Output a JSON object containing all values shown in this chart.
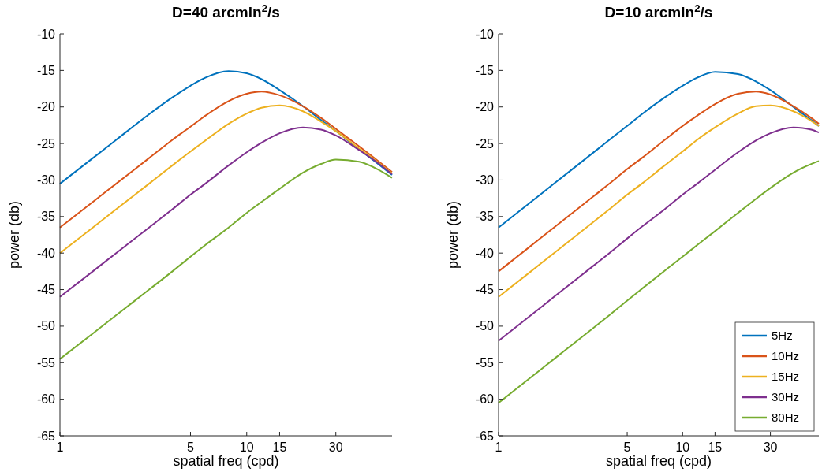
{
  "chart_data": [
    {
      "type": "line",
      "title": "D=40 arcmin$^{2}$/s",
      "xlabel": "spatial freq (cpd)",
      "ylabel": "power (db)",
      "log": "x",
      "x": [
        1,
        1.5,
        2,
        3,
        4,
        5,
        6,
        8,
        10,
        12,
        15,
        20,
        25,
        30,
        40,
        50,
        60
      ],
      "xlim": [
        1,
        60
      ],
      "xticks": [
        1,
        5,
        10,
        15,
        30
      ],
      "ylim": [
        -65,
        -10
      ],
      "yticks": [
        -65,
        -60,
        -55,
        -50,
        -45,
        -40,
        -35,
        -30,
        -25,
        -20,
        -15,
        -10
      ],
      "grid": false,
      "legend": false,
      "series": [
        {
          "color": "#0072bd",
          "values": [
            -30.5,
            -27.0,
            -24.5,
            -21.0,
            -18.7,
            -17.1,
            -16.0,
            -15.1,
            -15.4,
            -16.2,
            -17.7,
            -19.9,
            -21.8,
            -23.3,
            -25.8,
            -27.7,
            -29.3
          ]
        },
        {
          "color": "#d95319",
          "values": [
            -36.5,
            -33.0,
            -30.5,
            -27.0,
            -24.5,
            -22.7,
            -21.2,
            -19.2,
            -18.2,
            -17.9,
            -18.4,
            -19.9,
            -21.5,
            -23.0,
            -25.4,
            -27.3,
            -28.9
          ]
        },
        {
          "color": "#edb120",
          "values": [
            -40.0,
            -36.5,
            -34.0,
            -30.5,
            -28.0,
            -26.1,
            -24.6,
            -22.3,
            -20.9,
            -20.1,
            -19.8,
            -20.6,
            -22.0,
            -23.3,
            -25.7,
            -27.5,
            -29.1
          ]
        },
        {
          "color": "#7e2f8e",
          "values": [
            -46.0,
            -42.5,
            -40.0,
            -36.5,
            -34.0,
            -32.0,
            -30.5,
            -28.0,
            -26.2,
            -24.9,
            -23.6,
            -22.8,
            -23.1,
            -23.9,
            -25.9,
            -27.6,
            -29.2
          ]
        },
        {
          "color": "#77ac30",
          "values": [
            -54.5,
            -51.0,
            -48.5,
            -45.0,
            -42.5,
            -40.5,
            -38.9,
            -36.5,
            -34.5,
            -33.0,
            -31.2,
            -29.0,
            -27.8,
            -27.2,
            -27.5,
            -28.5,
            -29.7
          ]
        }
      ]
    },
    {
      "type": "line",
      "title": "D=10 arcmin$^{2}$/s",
      "xlabel": "spatial freq (cpd)",
      "ylabel": "power (db)",
      "log": "x",
      "x": [
        1,
        1.5,
        2,
        3,
        4,
        5,
        6,
        8,
        10,
        12,
        15,
        20,
        25,
        30,
        40,
        50,
        55
      ],
      "xlim": [
        1,
        55
      ],
      "xticks": [
        1,
        5,
        10,
        15,
        30
      ],
      "ylim": [
        -65,
        -10
      ],
      "yticks": [
        -65,
        -60,
        -55,
        -50,
        -45,
        -40,
        -35,
        -30,
        -25,
        -20,
        -15,
        -10
      ],
      "grid": false,
      "legend": "bottom right",
      "series": [
        {
          "name": "5Hz",
          "color": "#0072bd",
          "values": [
            -36.5,
            -33.0,
            -30.5,
            -27.0,
            -24.5,
            -22.6,
            -21.0,
            -18.7,
            -17.1,
            -16.0,
            -15.2,
            -15.5,
            -16.5,
            -17.7,
            -20.0,
            -21.8,
            -22.6
          ]
        },
        {
          "name": "10Hz",
          "color": "#d95319",
          "values": [
            -42.5,
            -39.0,
            -36.5,
            -33.0,
            -30.5,
            -28.5,
            -27.0,
            -24.5,
            -22.6,
            -21.2,
            -19.6,
            -18.2,
            -17.9,
            -18.3,
            -19.9,
            -21.5,
            -22.3
          ]
        },
        {
          "name": "15Hz",
          "color": "#edb120",
          "values": [
            -46.0,
            -42.5,
            -40.0,
            -36.5,
            -34.0,
            -32.0,
            -30.5,
            -28.0,
            -26.1,
            -24.5,
            -22.8,
            -20.9,
            -19.9,
            -19.8,
            -20.6,
            -21.9,
            -22.6
          ]
        },
        {
          "name": "30Hz",
          "color": "#7e2f8e",
          "values": [
            -52.0,
            -48.5,
            -46.0,
            -42.5,
            -40.0,
            -38.0,
            -36.4,
            -34.0,
            -32.0,
            -30.5,
            -28.6,
            -26.2,
            -24.6,
            -23.6,
            -22.8,
            -23.1,
            -23.5
          ]
        },
        {
          "name": "80Hz",
          "color": "#77ac30",
          "values": [
            -60.5,
            -57.0,
            -54.5,
            -51.0,
            -48.5,
            -46.5,
            -44.9,
            -42.4,
            -40.5,
            -38.9,
            -37.0,
            -34.5,
            -32.6,
            -31.1,
            -29.0,
            -27.8,
            -27.4
          ]
        }
      ]
    }
  ]
}
